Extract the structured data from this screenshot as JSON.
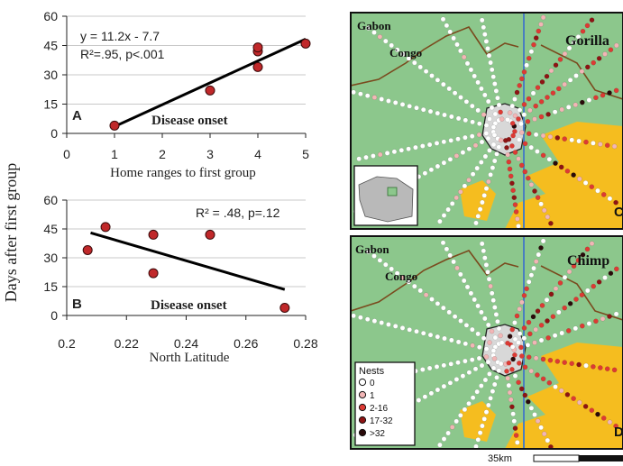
{
  "y_axis_label": "Days after first group",
  "colors": {
    "land": "#8cc78c",
    "reserve": "#d8d8d8",
    "road": "#ffffff",
    "savanna": "#f5bd1f",
    "river": "#4a7fc0",
    "border": "#7a4a1e",
    "frame": "#111111"
  },
  "chart_data": [
    {
      "type": "scatter",
      "panel": "A",
      "xlabel": "Home ranges to first group",
      "xlim": [
        0,
        5
      ],
      "ylim": [
        0,
        60
      ],
      "xticks": [
        "0",
        "1",
        "2",
        "3",
        "4",
        "5"
      ],
      "yticks": [
        "0",
        "15",
        "30",
        "45",
        "60"
      ],
      "points": [
        {
          "x": 1,
          "y": 4
        },
        {
          "x": 3,
          "y": 22
        },
        {
          "x": 4,
          "y": 34
        },
        {
          "x": 4,
          "y": 42
        },
        {
          "x": 4,
          "y": 44
        },
        {
          "x": 5,
          "y": 46
        }
      ],
      "fit": {
        "x": [
          1,
          5
        ],
        "y": [
          3.5,
          48.3
        ]
      },
      "annotations": [
        "y = 11.2x - 7.7",
        "R²=.95, p<.001"
      ],
      "label": "Disease onset",
      "grid": "horizontal",
      "marker_color": "#c0282a"
    },
    {
      "type": "scatter",
      "panel": "B",
      "xlabel": "North Latitude",
      "xlim": [
        0.2,
        0.28
      ],
      "ylim": [
        0,
        60
      ],
      "xticks": [
        "0.2",
        "0.22",
        "0.24",
        "0.26",
        "0.28"
      ],
      "yticks": [
        "0",
        "15",
        "30",
        "45",
        "60"
      ],
      "points": [
        {
          "x": 0.207,
          "y": 34
        },
        {
          "x": 0.213,
          "y": 46
        },
        {
          "x": 0.229,
          "y": 42
        },
        {
          "x": 0.229,
          "y": 22
        },
        {
          "x": 0.248,
          "y": 42
        },
        {
          "x": 0.273,
          "y": 4
        }
      ],
      "fit": {
        "x": [
          0.208,
          0.273
        ],
        "y": [
          43,
          13.5
        ]
      },
      "annotations": [
        "R² = .48, p=.12"
      ],
      "label": "Disease onset",
      "grid": "horizontal",
      "marker_color": "#c0282a"
    }
  ],
  "maps": [
    {
      "panel": "C",
      "title": "Gorilla",
      "labels": [
        "Gabon",
        "Congo"
      ],
      "corner_letter": "C"
    },
    {
      "panel": "D",
      "title": "Chimp",
      "labels": [
        "Gabon",
        "Congo"
      ],
      "corner_letter": "D"
    }
  ],
  "legend": {
    "title": "Nests",
    "items": [
      {
        "label": "0",
        "color": "#ffffff"
      },
      {
        "label": "1",
        "color": "#f2b6b6"
      },
      {
        "label": "2-16",
        "color": "#dd3a34"
      },
      {
        "label": "17-32",
        "color": "#8e1414"
      },
      {
        "label": ">32",
        "color": "#2a0a0a"
      }
    ]
  },
  "scale_bar": {
    "label": "35km"
  }
}
